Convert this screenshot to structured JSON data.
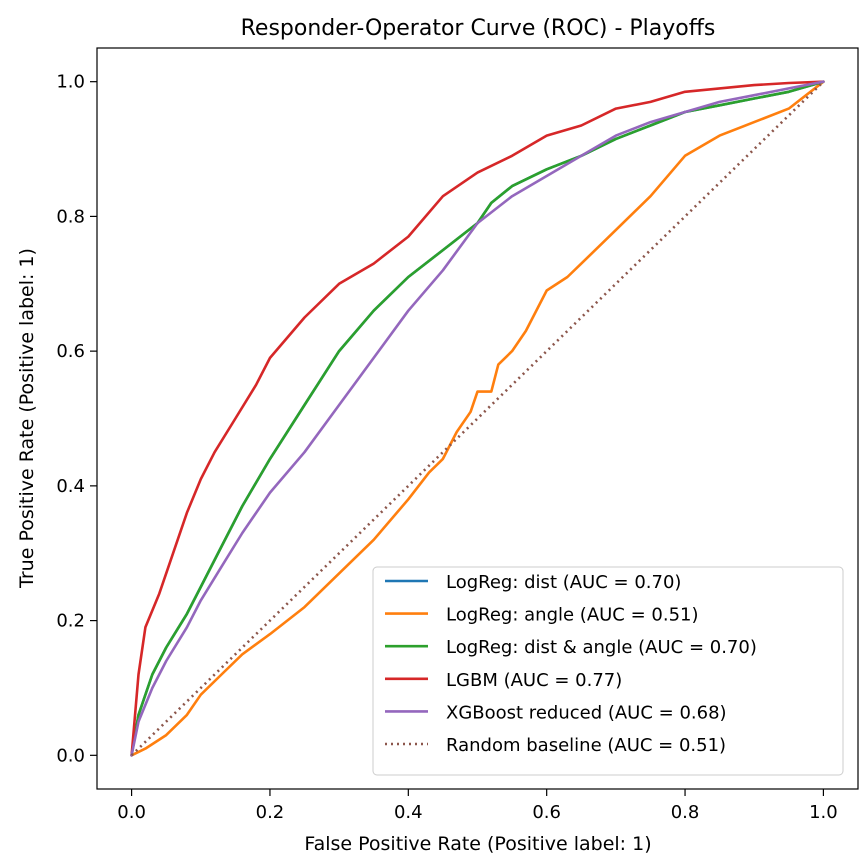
{
  "chart_data": {
    "type": "line",
    "title": "Responder-Operator Curve (ROC) - Playoffs",
    "xlabel": "False Positive Rate (Positive label: 1)",
    "ylabel": "True Positive Rate (Positive label: 1)",
    "xlim": [
      -0.05,
      1.05
    ],
    "ylim": [
      -0.05,
      1.05
    ],
    "xticks": [
      0.0,
      0.2,
      0.4,
      0.6,
      0.8,
      1.0
    ],
    "yticks": [
      0.0,
      0.2,
      0.4,
      0.6,
      0.8,
      1.0
    ],
    "xtick_labels": [
      "0.0",
      "0.2",
      "0.4",
      "0.6",
      "0.8",
      "1.0"
    ],
    "ytick_labels": [
      "0.0",
      "0.2",
      "0.4",
      "0.6",
      "0.8",
      "1.0"
    ],
    "grid": false,
    "legend_position": "lower-right",
    "series": [
      {
        "name": "LogReg: dist (AUC = 0.70)",
        "color": "#1f77b4",
        "style": "solid",
        "x": [
          0.0,
          0.01,
          0.03,
          0.05,
          0.08,
          0.1,
          0.13,
          0.16,
          0.2,
          0.25,
          0.3,
          0.35,
          0.4,
          0.45,
          0.5,
          0.52,
          0.55,
          0.6,
          0.65,
          0.7,
          0.75,
          0.8,
          0.85,
          0.9,
          0.95,
          1.0
        ],
        "y": [
          0.0,
          0.06,
          0.12,
          0.16,
          0.21,
          0.25,
          0.31,
          0.37,
          0.44,
          0.52,
          0.6,
          0.66,
          0.71,
          0.75,
          0.79,
          0.82,
          0.845,
          0.87,
          0.89,
          0.915,
          0.935,
          0.955,
          0.965,
          0.975,
          0.985,
          1.0
        ]
      },
      {
        "name": "LogReg: angle (AUC = 0.51)",
        "color": "#ff7f0e",
        "style": "solid",
        "x": [
          0.0,
          0.02,
          0.05,
          0.08,
          0.1,
          0.13,
          0.16,
          0.2,
          0.25,
          0.3,
          0.35,
          0.4,
          0.43,
          0.45,
          0.47,
          0.49,
          0.5,
          0.52,
          0.53,
          0.55,
          0.57,
          0.6,
          0.63,
          0.65,
          0.7,
          0.75,
          0.8,
          0.85,
          0.9,
          0.95,
          1.0
        ],
        "y": [
          0.0,
          0.01,
          0.03,
          0.06,
          0.09,
          0.12,
          0.15,
          0.18,
          0.22,
          0.27,
          0.32,
          0.38,
          0.42,
          0.44,
          0.48,
          0.51,
          0.54,
          0.54,
          0.58,
          0.6,
          0.63,
          0.69,
          0.71,
          0.73,
          0.78,
          0.83,
          0.89,
          0.92,
          0.94,
          0.96,
          1.0
        ]
      },
      {
        "name": "LogReg: dist & angle (AUC = 0.70)",
        "color": "#2ca02c",
        "style": "solid",
        "x": [
          0.0,
          0.01,
          0.03,
          0.05,
          0.08,
          0.1,
          0.13,
          0.16,
          0.2,
          0.25,
          0.3,
          0.35,
          0.4,
          0.45,
          0.5,
          0.52,
          0.55,
          0.6,
          0.65,
          0.7,
          0.75,
          0.8,
          0.85,
          0.9,
          0.95,
          1.0
        ],
        "y": [
          0.0,
          0.06,
          0.12,
          0.16,
          0.21,
          0.25,
          0.31,
          0.37,
          0.44,
          0.52,
          0.6,
          0.66,
          0.71,
          0.75,
          0.79,
          0.82,
          0.845,
          0.87,
          0.89,
          0.915,
          0.935,
          0.955,
          0.965,
          0.975,
          0.985,
          1.0
        ]
      },
      {
        "name": "LGBM (AUC = 0.77)",
        "color": "#d62728",
        "style": "solid",
        "x": [
          0.0,
          0.01,
          0.02,
          0.04,
          0.06,
          0.08,
          0.1,
          0.12,
          0.15,
          0.18,
          0.2,
          0.25,
          0.3,
          0.35,
          0.4,
          0.45,
          0.5,
          0.55,
          0.6,
          0.65,
          0.7,
          0.75,
          0.8,
          0.85,
          0.9,
          0.95,
          1.0
        ],
        "y": [
          0.0,
          0.12,
          0.19,
          0.24,
          0.3,
          0.36,
          0.41,
          0.45,
          0.5,
          0.55,
          0.59,
          0.65,
          0.7,
          0.73,
          0.77,
          0.83,
          0.865,
          0.89,
          0.92,
          0.935,
          0.96,
          0.97,
          0.985,
          0.99,
          0.995,
          0.998,
          1.0
        ]
      },
      {
        "name": "XGBoost reduced (AUC = 0.68)",
        "color": "#9467bd",
        "style": "solid",
        "x": [
          0.0,
          0.01,
          0.03,
          0.05,
          0.08,
          0.1,
          0.13,
          0.16,
          0.2,
          0.25,
          0.3,
          0.35,
          0.4,
          0.45,
          0.5,
          0.55,
          0.6,
          0.65,
          0.7,
          0.75,
          0.8,
          0.85,
          0.9,
          0.95,
          1.0
        ],
        "y": [
          0.0,
          0.05,
          0.1,
          0.14,
          0.19,
          0.23,
          0.28,
          0.33,
          0.39,
          0.45,
          0.52,
          0.59,
          0.66,
          0.72,
          0.79,
          0.83,
          0.86,
          0.89,
          0.92,
          0.94,
          0.955,
          0.97,
          0.98,
          0.99,
          1.0
        ]
      },
      {
        "name": "Random baseline (AUC = 0.51)",
        "color": "#8c564b",
        "style": "dotted",
        "x": [
          0.0,
          1.0
        ],
        "y": [
          0.0,
          1.0
        ]
      }
    ]
  }
}
